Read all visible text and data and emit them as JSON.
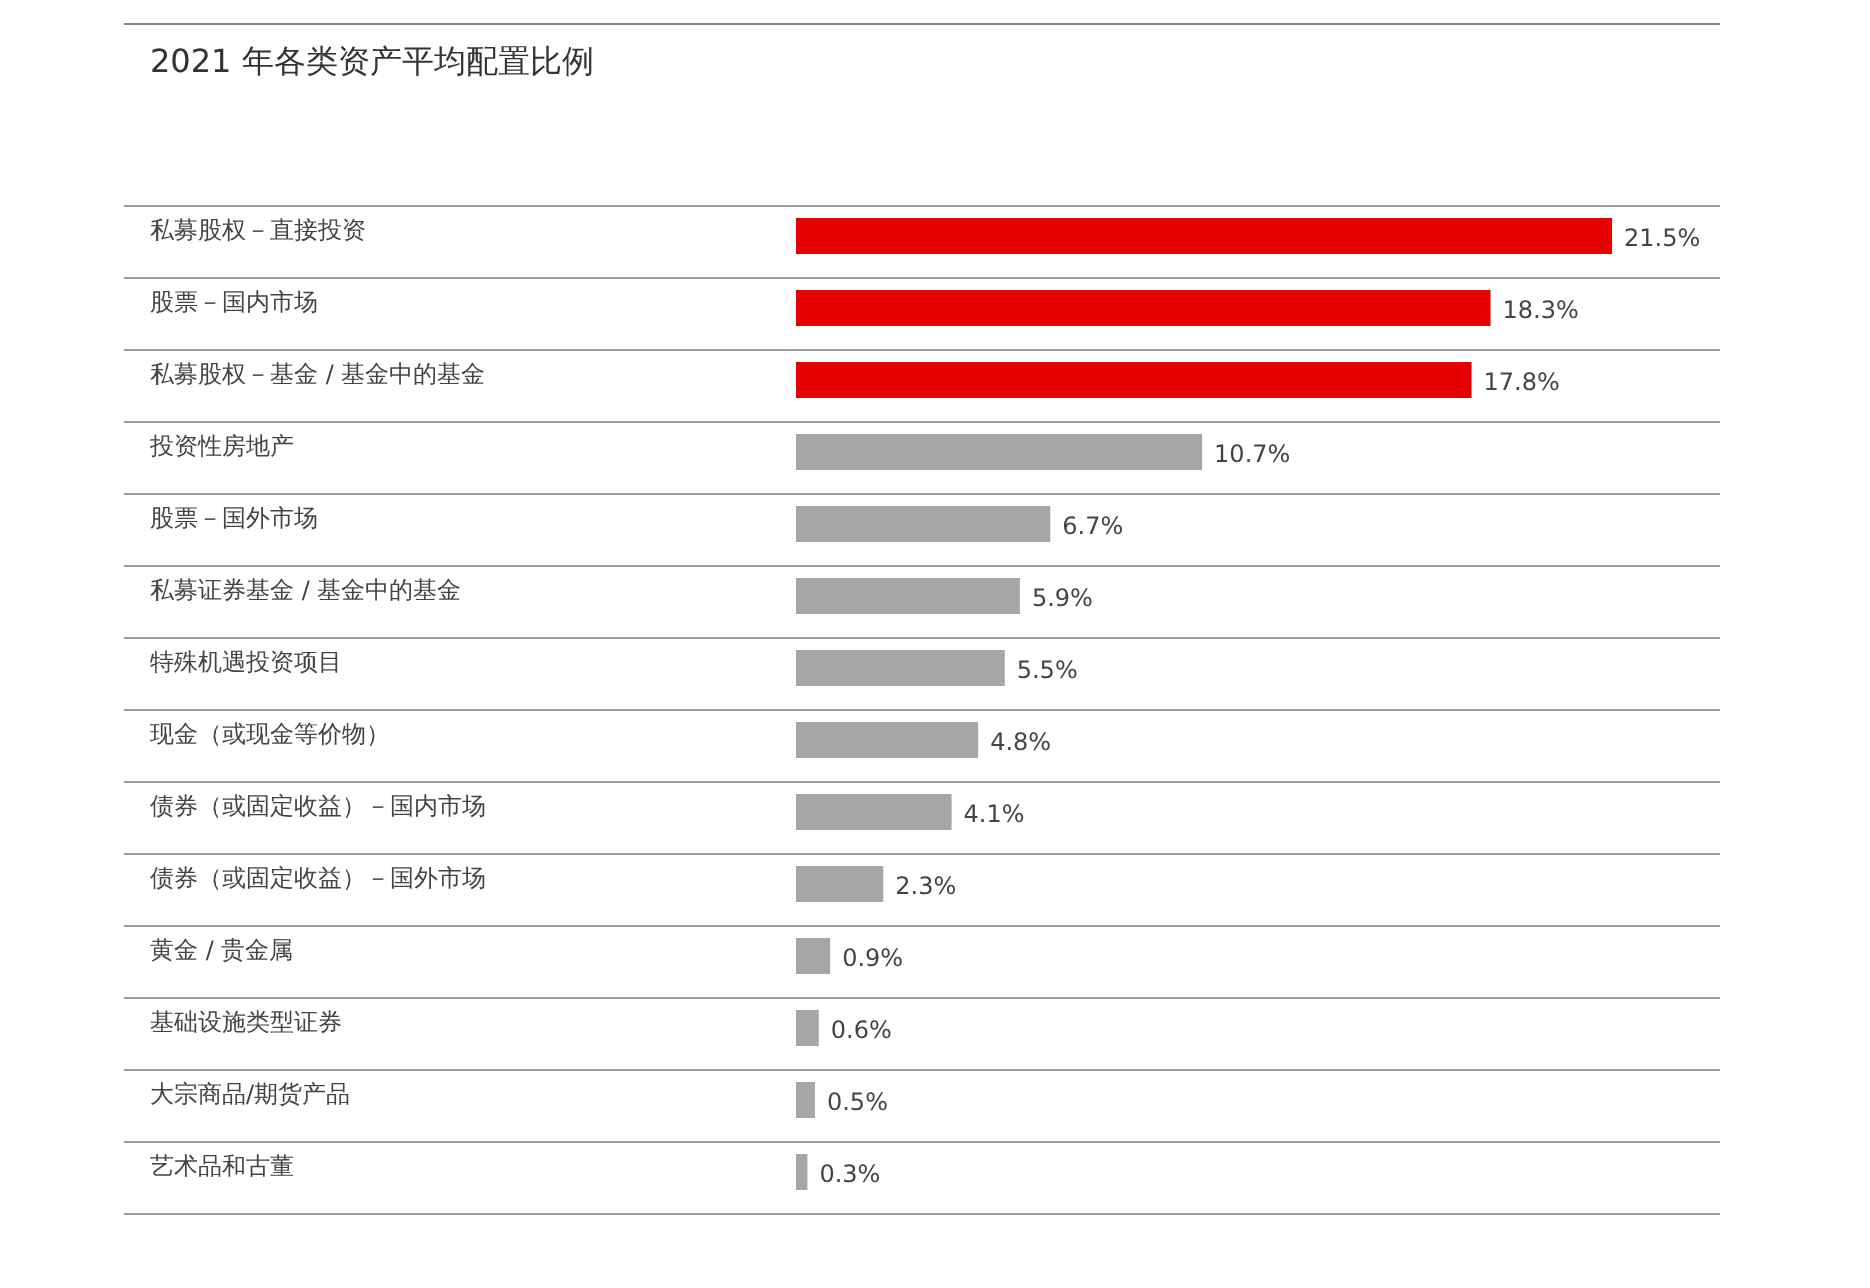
{
  "chart_data": {
    "type": "bar",
    "orientation": "horizontal",
    "title": "2021 年各类资产平均配置比例",
    "categories": [
      "私募股权－直接投资",
      "股票－国内市场",
      "私募股权－基金 / 基金中的基金",
      "投资性房地产",
      "股票－国外市场",
      "私募证券基金 / 基金中的基金",
      "特殊机遇投资项目",
      "现金（或现金等价物）",
      "债券（或固定收益）－国内市场",
      "债券（或固定收益）－国外市场",
      "黄金 / 贵金属",
      "基础设施类型证券",
      "大宗商品/期货产品",
      "艺术品和古董"
    ],
    "values": [
      21.5,
      18.3,
      17.8,
      10.7,
      6.7,
      5.9,
      5.5,
      4.8,
      4.1,
      2.3,
      0.9,
      0.6,
      0.5,
      0.3
    ],
    "value_labels": [
      "21.5%",
      "18.3%",
      "17.8%",
      "10.7%",
      "6.7%",
      "5.9%",
      "5.5%",
      "4.8%",
      "4.1%",
      "2.3%",
      "0.9%",
      "0.6%",
      "0.5%",
      "0.3%"
    ],
    "colors": [
      "#e60000",
      "#e60000",
      "#e60000",
      "#a6a6a6",
      "#a6a6a6",
      "#a6a6a6",
      "#a6a6a6",
      "#a6a6a6",
      "#a6a6a6",
      "#a6a6a6",
      "#a6a6a6",
      "#a6a6a6",
      "#a6a6a6",
      "#a6a6a6"
    ]
  }
}
